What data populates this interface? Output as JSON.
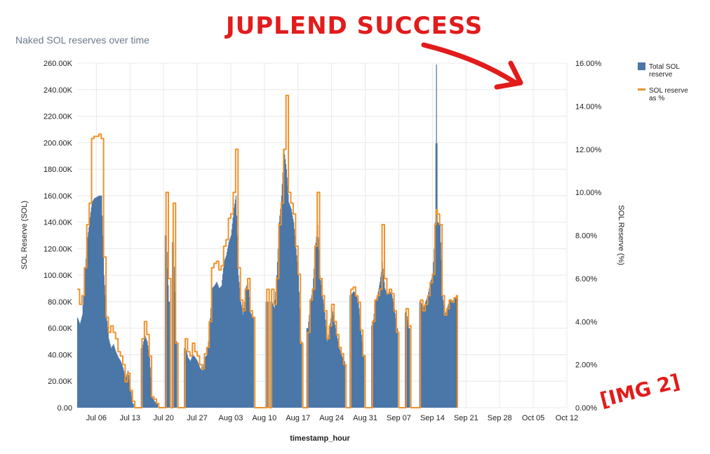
{
  "chart_data": {
    "type": "bar+line",
    "title": "Naked SOL reserves over time",
    "xlabel": "timestamp_hour",
    "ylabel_left": "SOL Reserve (SOL)",
    "ylabel_right": "SOL Reserve (%)",
    "ylim_left": [
      0,
      260000
    ],
    "ylim_right": [
      0,
      16
    ],
    "left_ticks": [
      "0.00",
      "20.00K",
      "40.00K",
      "60.00K",
      "80.00K",
      "100.00K",
      "120.00K",
      "140.00K",
      "160.00K",
      "180.00K",
      "200.00K",
      "220.00K",
      "240.00K",
      "260.00K"
    ],
    "right_ticks": [
      "0.00%",
      "2.00%",
      "4.00%",
      "6.00%",
      "8.00%",
      "10.00%",
      "12.00%",
      "14.00%",
      "16.00%"
    ],
    "x_ticks": [
      "Jul 06",
      "Jul 13",
      "Jul 20",
      "Jul 27",
      "Aug 03",
      "Aug 10",
      "Aug 17",
      "Aug 24",
      "Aug 31",
      "Sep 07",
      "Sep 14",
      "Sep 21",
      "Sep 28",
      "Oct 05",
      "Oct 12"
    ],
    "x_start_label": "Jul 06",
    "x_start_offset_days": -4,
    "x_end_offset_days": 98,
    "grid": true,
    "legend_position": "top-right",
    "colors": {
      "bar": "#4a76a8",
      "line": "#f0922b",
      "grid": "#e8e8e8",
      "annotation": "#e21b1b",
      "title": "#6b7a8c"
    },
    "series": [
      {
        "name": "Total SOL reserve",
        "type": "bar",
        "points": [
          [
            -4,
            68000
          ],
          [
            -3.5,
            63000
          ],
          [
            -3,
            70000
          ],
          [
            -2.5,
            100000
          ],
          [
            -2,
            125000
          ],
          [
            -1.5,
            140000
          ],
          [
            -1,
            155000
          ],
          [
            -0.5,
            158000
          ],
          [
            0,
            159000
          ],
          [
            0.5,
            160000
          ],
          [
            1,
            160000
          ],
          [
            1.5,
            100000
          ],
          [
            2,
            70000
          ],
          [
            2.5,
            52000
          ],
          [
            3,
            45000
          ],
          [
            3.5,
            48000
          ],
          [
            4,
            42000
          ],
          [
            4.5,
            38000
          ],
          [
            5,
            35000
          ],
          [
            5.5,
            30000
          ],
          [
            6,
            22000
          ],
          [
            6.5,
            28000
          ],
          [
            7,
            15000
          ],
          [
            7.5,
            3000
          ],
          [
            8,
            0
          ],
          [
            9,
            0
          ],
          [
            9.5,
            45000
          ],
          [
            10,
            55000
          ],
          [
            10.5,
            50000
          ],
          [
            11,
            38000
          ],
          [
            11.5,
            8000
          ],
          [
            12,
            5000
          ],
          [
            12.5,
            3000
          ],
          [
            13,
            0
          ],
          [
            14,
            0
          ],
          [
            14.5,
            130000
          ],
          [
            15,
            80000
          ],
          [
            15.5,
            0
          ],
          [
            16,
            125000
          ],
          [
            16.5,
            50000
          ],
          [
            17,
            0
          ],
          [
            18,
            0
          ],
          [
            18.5,
            45000
          ],
          [
            19,
            38000
          ],
          [
            19.5,
            35000
          ],
          [
            20,
            40000
          ],
          [
            20.5,
            38000
          ],
          [
            21,
            35000
          ],
          [
            21.5,
            30000
          ],
          [
            22,
            28000
          ],
          [
            22.5,
            38000
          ],
          [
            23,
            40000
          ],
          [
            23.5,
            60000
          ],
          [
            24,
            90000
          ],
          [
            24.5,
            92000
          ],
          [
            25,
            95000
          ],
          [
            25.5,
            90000
          ],
          [
            26,
            92000
          ],
          [
            26.5,
            110000
          ],
          [
            27,
            115000
          ],
          [
            27.5,
            125000
          ],
          [
            28,
            130000
          ],
          [
            28.5,
            148000
          ],
          [
            29,
            160000
          ],
          [
            29.5,
            100000
          ],
          [
            30,
            80000
          ],
          [
            30.5,
            70000
          ],
          [
            31,
            90000
          ],
          [
            31.5,
            95000
          ],
          [
            32,
            72000
          ],
          [
            32.5,
            68000
          ],
          [
            33,
            0
          ],
          [
            34,
            0
          ],
          [
            35,
            0
          ],
          [
            35.5,
            80000
          ],
          [
            36,
            0
          ],
          [
            36.5,
            80000
          ],
          [
            37,
            75000
          ],
          [
            37.5,
            100000
          ],
          [
            38,
            140000
          ],
          [
            38.5,
            160000
          ],
          [
            39,
            195000
          ],
          [
            39.5,
            180000
          ],
          [
            40,
            155000
          ],
          [
            40.5,
            150000
          ],
          [
            41,
            140000
          ],
          [
            41.5,
            120000
          ],
          [
            42,
            100000
          ],
          [
            42.5,
            50000
          ],
          [
            43,
            0
          ],
          [
            43.5,
            0
          ],
          [
            44,
            60000
          ],
          [
            44.5,
            80000
          ],
          [
            45,
            90000
          ],
          [
            45.5,
            120000
          ],
          [
            46,
            138000
          ],
          [
            46.5,
            100000
          ],
          [
            47,
            85000
          ],
          [
            47.5,
            72000
          ],
          [
            48,
            50000
          ],
          [
            48.5,
            60000
          ],
          [
            49,
            75000
          ],
          [
            49.5,
            65000
          ],
          [
            50,
            55000
          ],
          [
            50.5,
            45000
          ],
          [
            51,
            40000
          ],
          [
            51.5,
            35000
          ],
          [
            52,
            0
          ],
          [
            52.5,
            0
          ],
          [
            53,
            85000
          ],
          [
            53.5,
            88000
          ],
          [
            54,
            85000
          ],
          [
            54.5,
            80000
          ],
          [
            55,
            60000
          ],
          [
            55.5,
            40000
          ],
          [
            56,
            0
          ],
          [
            57,
            0
          ],
          [
            57.5,
            62000
          ],
          [
            58,
            80000
          ],
          [
            58.5,
            85000
          ],
          [
            59,
            95000
          ],
          [
            59.5,
            110000
          ],
          [
            60,
            90000
          ],
          [
            60.5,
            85000
          ],
          [
            61,
            88000
          ],
          [
            61.5,
            85000
          ],
          [
            62,
            75000
          ],
          [
            62.5,
            60000
          ],
          [
            63,
            0
          ],
          [
            64,
            0
          ],
          [
            64.5,
            72000
          ],
          [
            65,
            60000
          ],
          [
            65.5,
            0
          ],
          [
            66,
            0
          ],
          [
            67,
            0
          ],
          [
            67.5,
            80000
          ],
          [
            68,
            75000
          ],
          [
            68.5,
            80000
          ],
          [
            69,
            85000
          ],
          [
            69.5,
            95000
          ],
          [
            70,
            100000
          ],
          [
            70.5,
            140000
          ],
          [
            70.75,
            259000
          ],
          [
            71,
            140000
          ],
          [
            71.5,
            138000
          ],
          [
            72,
            85000
          ],
          [
            72.5,
            70000
          ],
          [
            73,
            75000
          ],
          [
            73.5,
            82000
          ],
          [
            74,
            80000
          ],
          [
            74.5,
            82000
          ],
          [
            75,
            85000
          ],
          [
            75.2,
            0
          ]
        ]
      },
      {
        "name": "SOL reserve as %",
        "type": "line",
        "points": [
          [
            -4,
            5.5
          ],
          [
            -3.5,
            4.8
          ],
          [
            -3,
            5.2
          ],
          [
            -2.5,
            6.5
          ],
          [
            -2,
            8.5
          ],
          [
            -1.5,
            9.5
          ],
          [
            -1,
            12.5
          ],
          [
            -0.5,
            12.6
          ],
          [
            0,
            12.6
          ],
          [
            0.5,
            12.7
          ],
          [
            1,
            12.5
          ],
          [
            1.5,
            7.0
          ],
          [
            2,
            4.2
          ],
          [
            2.5,
            3.5
          ],
          [
            3,
            3.8
          ],
          [
            3.5,
            3.5
          ],
          [
            4,
            3.2
          ],
          [
            4.5,
            2.6
          ],
          [
            5,
            2.4
          ],
          [
            5.5,
            2.0
          ],
          [
            6,
            1.2
          ],
          [
            6.5,
            1.6
          ],
          [
            7,
            0.8
          ],
          [
            7.5,
            0.3
          ],
          [
            8,
            0
          ],
          [
            9,
            0
          ],
          [
            9.5,
            3.2
          ],
          [
            10,
            4.0
          ],
          [
            10.5,
            3.4
          ],
          [
            11,
            2.4
          ],
          [
            11.5,
            0.5
          ],
          [
            12,
            0.4
          ],
          [
            12.5,
            0.2
          ],
          [
            13,
            0
          ],
          [
            14,
            0
          ],
          [
            14.5,
            10.0
          ],
          [
            15,
            6.0
          ],
          [
            15.5,
            0
          ],
          [
            16,
            9.5
          ],
          [
            16.5,
            3.0
          ],
          [
            17,
            0
          ],
          [
            18,
            0
          ],
          [
            18.5,
            3.2
          ],
          [
            19,
            2.6
          ],
          [
            19.5,
            2.4
          ],
          [
            20,
            3.0
          ],
          [
            20.5,
            2.6
          ],
          [
            21,
            2.4
          ],
          [
            21.5,
            2.0
          ],
          [
            22,
            1.8
          ],
          [
            22.5,
            2.5
          ],
          [
            23,
            2.8
          ],
          [
            23.5,
            4.0
          ],
          [
            24,
            6.5
          ],
          [
            24.5,
            6.7
          ],
          [
            25,
            6.8
          ],
          [
            25.5,
            6.4
          ],
          [
            26,
            6.6
          ],
          [
            26.5,
            7.5
          ],
          [
            27,
            7.8
          ],
          [
            27.5,
            8.8
          ],
          [
            28,
            9.0
          ],
          [
            28.5,
            10.0
          ],
          [
            29,
            12.0
          ],
          [
            29.5,
            6.5
          ],
          [
            30,
            5.0
          ],
          [
            30.5,
            4.5
          ],
          [
            31,
            5.5
          ],
          [
            31.5,
            6.0
          ],
          [
            32,
            4.5
          ],
          [
            32.5,
            4.2
          ],
          [
            33,
            0
          ],
          [
            34,
            0
          ],
          [
            35,
            0
          ],
          [
            35.5,
            5.5
          ],
          [
            36,
            0
          ],
          [
            36.5,
            5.5
          ],
          [
            37,
            4.8
          ],
          [
            37.5,
            6.0
          ],
          [
            38,
            8.5
          ],
          [
            38.5,
            9.5
          ],
          [
            39,
            12.0
          ],
          [
            39.5,
            14.5
          ],
          [
            40,
            10.0
          ],
          [
            40.5,
            9.5
          ],
          [
            41,
            9.0
          ],
          [
            41.5,
            7.5
          ],
          [
            42,
            6.2
          ],
          [
            42.5,
            3.0
          ],
          [
            43,
            0
          ],
          [
            43.5,
            0
          ],
          [
            44,
            3.5
          ],
          [
            44.5,
            5.0
          ],
          [
            45,
            5.5
          ],
          [
            45.5,
            7.5
          ],
          [
            46,
            10.0
          ],
          [
            46.5,
            6.0
          ],
          [
            47,
            5.2
          ],
          [
            47.5,
            4.5
          ],
          [
            48,
            3.2
          ],
          [
            48.5,
            3.8
          ],
          [
            49,
            4.8
          ],
          [
            49.5,
            4.0
          ],
          [
            50,
            3.4
          ],
          [
            50.5,
            2.8
          ],
          [
            51,
            2.5
          ],
          [
            51.5,
            2.0
          ],
          [
            52,
            0
          ],
          [
            52.5,
            0
          ],
          [
            53,
            5.5
          ],
          [
            53.5,
            5.6
          ],
          [
            54,
            5.2
          ],
          [
            54.5,
            4.9
          ],
          [
            55,
            3.6
          ],
          [
            55.5,
            2.4
          ],
          [
            56,
            0
          ],
          [
            57,
            0
          ],
          [
            57.5,
            4.0
          ],
          [
            58,
            5.0
          ],
          [
            58.5,
            5.2
          ],
          [
            59,
            5.5
          ],
          [
            59.5,
            8.5
          ],
          [
            60,
            6.0
          ],
          [
            60.5,
            5.3
          ],
          [
            61,
            5.5
          ],
          [
            61.5,
            5.3
          ],
          [
            62,
            4.5
          ],
          [
            62.5,
            3.5
          ],
          [
            63,
            0
          ],
          [
            64,
            0
          ],
          [
            64.5,
            4.6
          ],
          [
            65,
            3.8
          ],
          [
            65.5,
            0
          ],
          [
            66,
            0
          ],
          [
            67,
            0
          ],
          [
            67.5,
            5.0
          ],
          [
            68,
            4.5
          ],
          [
            68.5,
            4.8
          ],
          [
            69,
            5.2
          ],
          [
            69.5,
            5.8
          ],
          [
            70,
            6.2
          ],
          [
            70.5,
            8.5
          ],
          [
            70.75,
            9.2
          ],
          [
            71,
            9.0
          ],
          [
            71.5,
            8.5
          ],
          [
            72,
            5.2
          ],
          [
            72.5,
            4.3
          ],
          [
            73,
            4.6
          ],
          [
            73.5,
            5.0
          ],
          [
            74,
            4.9
          ],
          [
            74.5,
            5.1
          ],
          [
            75,
            5.2
          ],
          [
            75.2,
            0
          ]
        ]
      }
    ]
  },
  "annotations": {
    "handwritten_title": "JUPLEND SUCCESS",
    "handwritten_tag": "[IMG 2]"
  }
}
